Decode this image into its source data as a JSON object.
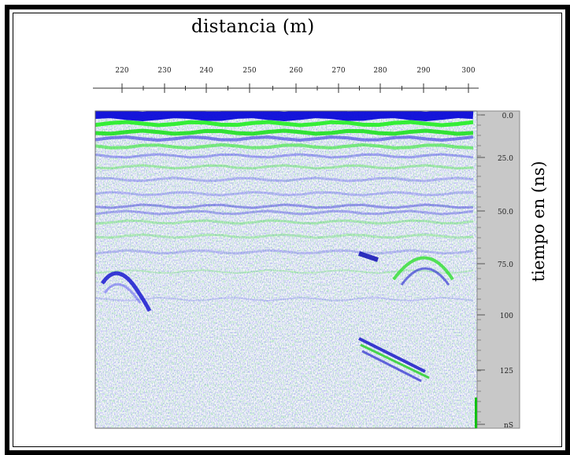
{
  "x_axis": {
    "title": "distancia (m)",
    "tick_labels": [
      "220",
      "230",
      "240",
      "250",
      "260",
      "270",
      "280",
      "290",
      "300"
    ]
  },
  "y_axis": {
    "title": "tiempo en (ns)",
    "tick_labels": [
      "0.0",
      "25.0",
      "50.0",
      "75.0",
      "100",
      "125",
      "nS"
    ]
  },
  "colors": {
    "signal_blue": "#1414e6",
    "signal_green": "#14e614",
    "scale_bar": "#c8c8c8",
    "frame": "#000000"
  }
}
